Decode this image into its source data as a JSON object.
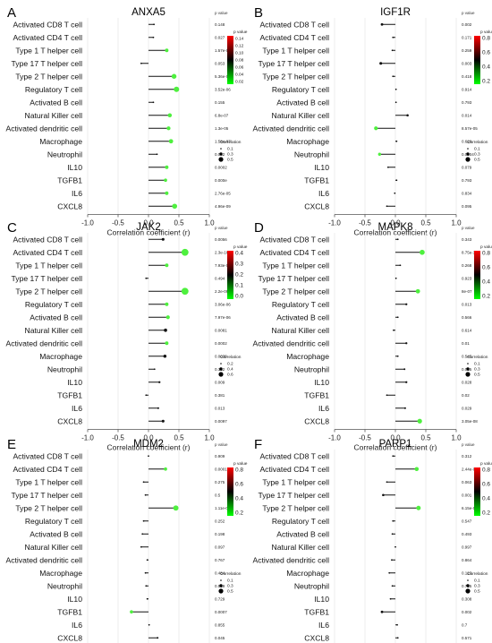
{
  "chart_data": [
    {
      "type": "lollipop",
      "panel_letter": "A",
      "title": "ANXA5",
      "xlabel": "Correlation coefficient (r)",
      "xlim": [
        -1.0,
        1.0
      ],
      "xticks": [
        "-1.0",
        "-0.5",
        "0.0",
        "0.5",
        "1.0"
      ],
      "pvalue_header": "p value",
      "categories": [
        "Activated CD8 T cell",
        "Activated CD4 T cell",
        "Type 1 T helper cell",
        "Type 17 T helper cell",
        "Type 2 T helper cell",
        "Regulatory T cell",
        "Activated B cell",
        "Natural Killer cell",
        "Activated dendritic cell",
        "Macrophage",
        "Neutrophil",
        "IL10",
        "TGFB1",
        "IL6",
        "CXCL8"
      ],
      "values": [
        0.09,
        0.08,
        0.3,
        -0.12,
        0.42,
        0.46,
        0.08,
        0.35,
        0.33,
        0.37,
        0.14,
        0.3,
        0.28,
        0.3,
        0.43
      ],
      "pvalues": [
        "0.148",
        "0.027",
        "1.57e-05",
        "0.053",
        "5.36e-06",
        "3.52e-06",
        "0.155",
        "6.8e-07",
        "1.3e-05",
        "1.58e-07",
        "0.042",
        "0.0002",
        "0.000e",
        "2.76e-05",
        "4.96e-09"
      ],
      "colorbar": {
        "label": "p value",
        "ticks": [
          "0.14",
          "0.12",
          "0.10",
          "0.08",
          "0.06",
          "0.04",
          "0.02"
        ]
      },
      "size_legend": {
        "title": "Correlation",
        "items": [
          "0.1",
          "0.3",
          "0.5"
        ]
      }
    },
    {
      "type": "lollipop",
      "panel_letter": "B",
      "title": "IGF1R",
      "xlabel": "Correlation coefficient (r)",
      "xlim": [
        -1.0,
        1.0
      ],
      "xticks": [
        "-1.0",
        "-0.5",
        "0.0",
        "0.5",
        "1.0"
      ],
      "pvalue_header": "p value",
      "categories": [
        "Activated CD8 T cell",
        "Activated CD4 T cell",
        "Type 1 T helper cell",
        "Type 17 T helper cell",
        "Type 2 T helper cell",
        "Regulatory T cell",
        "Activated B cell",
        "Natural Killer cell",
        "Activated dendritic cell",
        "Macrophage",
        "Neutrophil",
        "IL10",
        "TGFB1",
        "IL6",
        "CXCL8"
      ],
      "values": [
        -0.22,
        -0.04,
        -0.05,
        -0.24,
        -0.04,
        0.01,
        0.01,
        0.2,
        -0.32,
        0.02,
        -0.26,
        -0.12,
        0.02,
        -0.01,
        -0.14
      ],
      "pvalues": [
        "0.002",
        "0.171",
        "0.259",
        "0.003",
        "0.418",
        "0.914",
        "0.793",
        "0.014",
        "8.57e-05",
        "0.629",
        "0.0004",
        "0.079",
        "0.793",
        "0.834",
        "0.095"
      ],
      "colorbar": {
        "label": "p value",
        "ticks": [
          "0.8",
          "0.6",
          "0.4",
          "0.2"
        ]
      },
      "size_legend": {
        "title": "Correlation",
        "items": [
          "0.1",
          "0.3",
          "0.5"
        ]
      }
    },
    {
      "type": "lollipop",
      "panel_letter": "C",
      "title": "JAK2",
      "xlabel": "Correlation coefficient (r)",
      "xlim": [
        -1.0,
        1.0
      ],
      "xticks": [
        "-1.0",
        "-0.5",
        "0.0",
        "0.5",
        "1.0"
      ],
      "pvalue_header": "p value",
      "categories": [
        "Activated CD8 T cell",
        "Activated CD4 T cell",
        "Type 1 T helper cell",
        "Type 17 T helper cell",
        "Type 2 T helper cell",
        "Regulatory T cell",
        "Activated B cell",
        "Natural Killer cell",
        "Activated dendritic cell",
        "Macrophage",
        "Neutrophil",
        "IL10",
        "TGFB1",
        "IL6",
        "CXCL8"
      ],
      "values": [
        0.24,
        0.6,
        0.3,
        -0.04,
        0.6,
        0.3,
        0.32,
        0.28,
        0.3,
        0.27,
        0.1,
        0.18,
        -0.04,
        0.16,
        0.24
      ],
      "pvalues": [
        "0.0056",
        "2.3e-16",
        "7.93e-06",
        "0.494",
        "2.2e-09",
        "3.06e-06",
        "7.97e-06",
        "0.0081",
        "0.0002",
        "0.0036",
        "0.132",
        "0.009",
        "0.381",
        "0.013",
        "0.0097"
      ],
      "colorbar": {
        "label": "p value",
        "ticks": [
          "0.4",
          "0.3",
          "0.2",
          "0.1",
          "0.0"
        ]
      },
      "size_legend": {
        "title": "Correlation",
        "items": [
          "0.2",
          "0.4",
          "0.6"
        ]
      }
    },
    {
      "type": "lollipop",
      "panel_letter": "D",
      "title": "MAPK8",
      "xlabel": "Correlation coefficient (r)",
      "xlim": [
        -1.0,
        1.0
      ],
      "xticks": [
        "-1.0",
        "-0.5",
        "0.0",
        "0.5",
        "1.0"
      ],
      "pvalue_header": "p value",
      "categories": [
        "Activated CD8 T cell",
        "Activated CD4 T cell",
        "Type 1 T helper cell",
        "Type 17 T helper cell",
        "Type 2 T helper cell",
        "Regulatory T cell",
        "Activated B cell",
        "Natural Killer cell",
        "Activated dendritic cell",
        "Macrophage",
        "Neutrophil",
        "IL10",
        "TGFB1",
        "IL6",
        "CXCL8"
      ],
      "values": [
        0.04,
        0.44,
        0.08,
        0.01,
        0.37,
        0.18,
        0.04,
        -0.03,
        0.18,
        0.04,
        0.15,
        0.18,
        -0.14,
        0.16,
        0.4
      ],
      "pvalues": [
        "0.343",
        "8.75e-10",
        "0.268",
        "0.923",
        "8e-07",
        "0.013",
        "0.566",
        "0.614",
        "0.01",
        "0.545",
        "0.035",
        "0.028",
        "0.02",
        "0.029",
        "3.05e-08"
      ],
      "colorbar": {
        "label": "p value",
        "ticks": [
          "0.8",
          "0.6",
          "0.4",
          "0.2"
        ]
      },
      "size_legend": {
        "title": "Correlation",
        "items": [
          "0.1",
          "0.3",
          "0.5"
        ]
      }
    },
    {
      "type": "lollipop",
      "panel_letter": "E",
      "title": "MDM2",
      "xlabel": "Correlation coefficient (r)",
      "xlim": [
        -1.0,
        1.0
      ],
      "xticks": [
        "-1.0",
        "-0.5",
        "0.0",
        "0.5",
        "1.0"
      ],
      "pvalue_header": "p value",
      "categories": [
        "Activated CD8 T cell",
        "Activated CD4 T cell",
        "Type 1 T helper cell",
        "Type 17 T helper cell",
        "Type 2 T helper cell",
        "Regulatory T cell",
        "Activated B cell",
        "Natural Killer cell",
        "Activated dendritic cell",
        "Macrophage",
        "Neutrophil",
        "IL10",
        "TGFB1",
        "IL6",
        "CXCL8"
      ],
      "values": [
        0.0,
        0.28,
        -0.08,
        -0.05,
        0.45,
        -0.08,
        -0.1,
        -0.12,
        -0.02,
        -0.05,
        -0.04,
        -0.02,
        -0.28,
        0.01,
        0.15
      ],
      "pvalues": [
        "0.909",
        "0.0001",
        "0.275",
        "0.5",
        "1.11e-09",
        "0.252",
        "0.198",
        "0.097",
        "0.767",
        "0.484",
        "0.569",
        "0.729",
        "0.0007",
        "0.855",
        "0.045"
      ],
      "colorbar": {
        "label": "p value",
        "ticks": [
          "0.8",
          "0.6",
          "0.4",
          "0.2"
        ]
      },
      "size_legend": {
        "title": "Correlation",
        "items": [
          "0.1",
          "0.3",
          "0.5"
        ]
      }
    },
    {
      "type": "lollipop",
      "panel_letter": "F",
      "title": "PARP1",
      "xlabel": "Correlation coefficient (r)",
      "xlim": [
        -1.0,
        1.0
      ],
      "xticks": [
        "-1.0",
        "-0.5",
        "0.0",
        "0.5",
        "1.0"
      ],
      "pvalue_header": "p value",
      "categories": [
        "Activated CD8 T cell",
        "Activated CD4 T cell",
        "Type 1 T helper cell",
        "Type 17 T helper cell",
        "Type 2 T helper cell",
        "Regulatory T cell",
        "Activated B cell",
        "Natural Killer cell",
        "Activated dendritic cell",
        "Macrophage",
        "Neutrophil",
        "IL10",
        "TGFB1",
        "IL6",
        "CXCL8"
      ],
      "values": [
        -0.04,
        0.35,
        -0.14,
        -0.2,
        0.38,
        -0.04,
        -0.05,
        0.0,
        -0.06,
        -0.1,
        -0.05,
        -0.08,
        -0.22,
        0.03,
        0.04
      ],
      "pvalues": [
        "0.312",
        "2.44e-06",
        "0.063",
        "0.001",
        "6.15e-07",
        "0.547",
        "0.493",
        "0.997",
        "0.864",
        "0.123",
        "0.735",
        "0.308",
        "0.002",
        "0.7",
        "0.571"
      ],
      "colorbar": {
        "label": "p value",
        "ticks": [
          "0.8",
          "0.6",
          "0.4",
          "0.2"
        ]
      },
      "size_legend": {
        "title": "Correlation",
        "items": [
          "0.1",
          "0.3",
          "0.5"
        ]
      }
    }
  ]
}
